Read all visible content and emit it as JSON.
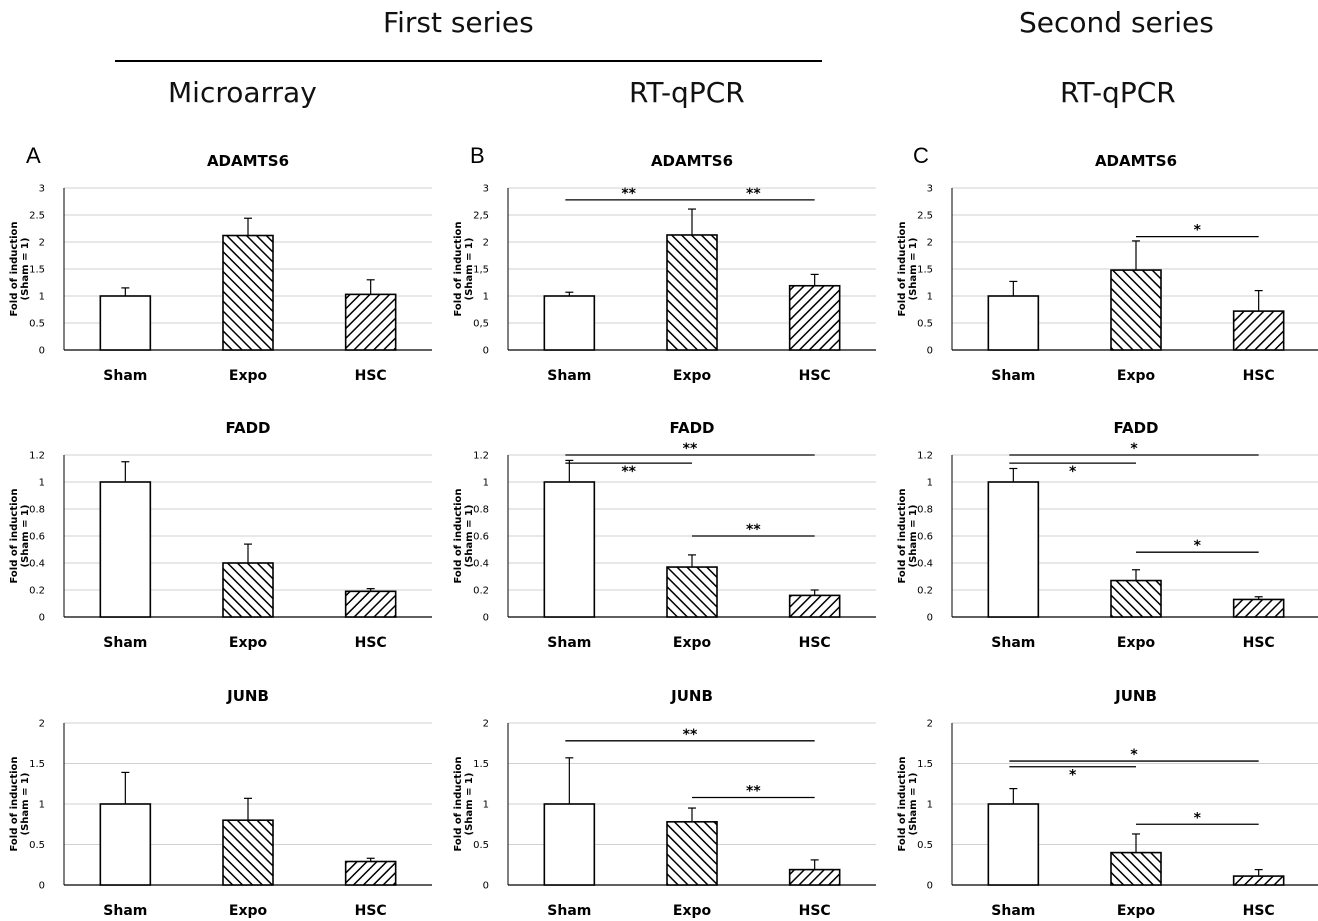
{
  "headers": {
    "first_series": "First series",
    "second_series": "Second series",
    "microarray": "Microarray",
    "rtqpcr_b": "RT-qPCR",
    "rtqpcr_c": "RT-qPCR"
  },
  "panel_letters": [
    "A",
    "B",
    "C"
  ],
  "colors": {
    "bar_stroke": "#000000",
    "grid": "#d0d0d0",
    "sig_line": "#000000"
  },
  "chart_data": [
    {
      "panel": "A",
      "type": "bar",
      "title": "ADAMTS6",
      "ylabel": "Fold of induction\n(Sham = 1)",
      "categories": [
        "Sham",
        "Expo",
        "HSC"
      ],
      "values": [
        1.0,
        2.12,
        1.03
      ],
      "errors": [
        0.15,
        0.32,
        0.27
      ],
      "patterns": [
        "white",
        "hatch-up",
        "hatch-down"
      ],
      "ylim": [
        0,
        3
      ],
      "yticks": [
        "0",
        "0.5",
        "1",
        "1.5",
        "2",
        "2.5",
        "3"
      ],
      "significance": []
    },
    {
      "panel": "A",
      "type": "bar",
      "title": "FADD",
      "ylabel": "Fold of induction\n(Sham = 1)",
      "categories": [
        "Sham",
        "Expo",
        "HSC"
      ],
      "values": [
        1.0,
        0.4,
        0.19
      ],
      "errors": [
        0.15,
        0.14,
        0.02
      ],
      "patterns": [
        "white",
        "hatch-up",
        "hatch-down"
      ],
      "ylim": [
        0,
        1.2
      ],
      "yticks": [
        "0",
        "0.2",
        "0.4",
        "0.6",
        "0.8",
        "1",
        "1.2"
      ],
      "significance": []
    },
    {
      "panel": "A",
      "type": "bar",
      "title": "JUNB",
      "ylabel": "Fold of induction\n(Sham = 1)",
      "categories": [
        "Sham",
        "Expo",
        "HSC"
      ],
      "values": [
        1.0,
        0.8,
        0.29
      ],
      "errors": [
        0.39,
        0.27,
        0.04
      ],
      "patterns": [
        "white",
        "hatch-up",
        "hatch-down"
      ],
      "ylim": [
        0,
        2
      ],
      "yticks": [
        "0",
        "0.5",
        "1",
        "1.5",
        "2"
      ],
      "significance": []
    },
    {
      "panel": "B",
      "type": "bar",
      "title": "ADAMTS6",
      "ylabel": "Fold of induction\n(Sham = 1)",
      "categories": [
        "Sham",
        "Expo",
        "HSC"
      ],
      "values": [
        1.0,
        2.13,
        1.19
      ],
      "errors": [
        0.07,
        0.48,
        0.21
      ],
      "patterns": [
        "white",
        "hatch-up",
        "hatch-down"
      ],
      "ylim": [
        0,
        3
      ],
      "yticks": [
        "0",
        "0,5",
        "1",
        "1,5",
        "2",
        "2,5",
        "3"
      ],
      "significance": [
        {
          "from": 0,
          "to": 1,
          "y": 2.78,
          "label": "**"
        },
        {
          "from": 1,
          "to": 2,
          "y": 2.78,
          "label": "**"
        }
      ]
    },
    {
      "panel": "B",
      "type": "bar",
      "title": "FADD",
      "ylabel": "Fold of induction\n(Sham = 1)",
      "categories": [
        "Sham",
        "Expo",
        "HSC"
      ],
      "values": [
        1.0,
        0.37,
        0.16
      ],
      "errors": [
        0.16,
        0.09,
        0.04
      ],
      "patterns": [
        "white",
        "hatch-up",
        "hatch-down"
      ],
      "ylim": [
        0,
        1.2
      ],
      "yticks": [
        "0",
        "0.2",
        "0.4",
        "0.6",
        "0.8",
        "1",
        "1.2"
      ],
      "significance": [
        {
          "from": 0,
          "to": 2,
          "y": 1.2,
          "label": "**"
        },
        {
          "from": 0,
          "to": 1,
          "y": 1.14,
          "label": "**"
        },
        {
          "from": 1,
          "to": 2,
          "y": 0.6,
          "label": "**"
        }
      ]
    },
    {
      "panel": "B",
      "type": "bar",
      "title": "JUNB",
      "ylabel": "Fold of induction\n(Sham = 1)",
      "categories": [
        "Sham",
        "Expo",
        "HSC"
      ],
      "values": [
        1.0,
        0.78,
        0.19
      ],
      "errors": [
        0.57,
        0.17,
        0.12
      ],
      "patterns": [
        "white",
        "hatch-up",
        "hatch-down"
      ],
      "ylim": [
        0,
        2
      ],
      "yticks": [
        "0",
        "0.5",
        "1",
        "1.5",
        "2"
      ],
      "significance": [
        {
          "from": 0,
          "to": 2,
          "y": 1.78,
          "label": "**"
        },
        {
          "from": 1,
          "to": 2,
          "y": 1.08,
          "label": "**"
        }
      ]
    },
    {
      "panel": "C",
      "type": "bar",
      "title": "ADAMTS6",
      "ylabel": "Fold of induction\n(Sham = 1)",
      "categories": [
        "Sham",
        "Expo",
        "HSC"
      ],
      "values": [
        1.0,
        1.48,
        0.72
      ],
      "errors": [
        0.27,
        0.54,
        0.38
      ],
      "patterns": [
        "white",
        "hatch-up",
        "hatch-down"
      ],
      "ylim": [
        0,
        3
      ],
      "yticks": [
        "0",
        "0.5",
        "1",
        "1.5",
        "2",
        "2.5",
        "3"
      ],
      "significance": [
        {
          "from": 1,
          "to": 2,
          "y": 2.1,
          "label": "*"
        }
      ]
    },
    {
      "panel": "C",
      "type": "bar",
      "title": "FADD",
      "ylabel": "Fold of induction\n(Sham = 1)",
      "categories": [
        "Sham",
        "Expo",
        "HSC"
      ],
      "values": [
        1.0,
        0.27,
        0.13
      ],
      "errors": [
        0.1,
        0.08,
        0.02
      ],
      "patterns": [
        "white",
        "hatch-up",
        "hatch-down"
      ],
      "ylim": [
        0,
        1.2
      ],
      "yticks": [
        "0",
        "0.2",
        "0.4",
        "0.6",
        "0.8",
        "1",
        "1.2"
      ],
      "significance": [
        {
          "from": 0,
          "to": 2,
          "y": 1.2,
          "label": "*"
        },
        {
          "from": 0,
          "to": 1,
          "y": 1.14,
          "label": "*"
        },
        {
          "from": 1,
          "to": 2,
          "y": 0.48,
          "label": "*"
        }
      ]
    },
    {
      "panel": "C",
      "type": "bar",
      "title": "JUNB",
      "ylabel": "Fold of induction\n(Sham = 1)",
      "categories": [
        "Sham",
        "Expo",
        "HSC"
      ],
      "values": [
        1.0,
        0.4,
        0.11
      ],
      "errors": [
        0.19,
        0.23,
        0.08
      ],
      "patterns": [
        "white",
        "hatch-up",
        "hatch-down"
      ],
      "ylim": [
        0,
        2
      ],
      "yticks": [
        "0",
        "0.5",
        "1",
        "1.5",
        "2"
      ],
      "significance": [
        {
          "from": 0,
          "to": 2,
          "y": 1.53,
          "label": "*"
        },
        {
          "from": 0,
          "to": 1,
          "y": 1.46,
          "label": "*"
        },
        {
          "from": 1,
          "to": 2,
          "y": 0.75,
          "label": "*"
        }
      ]
    }
  ]
}
